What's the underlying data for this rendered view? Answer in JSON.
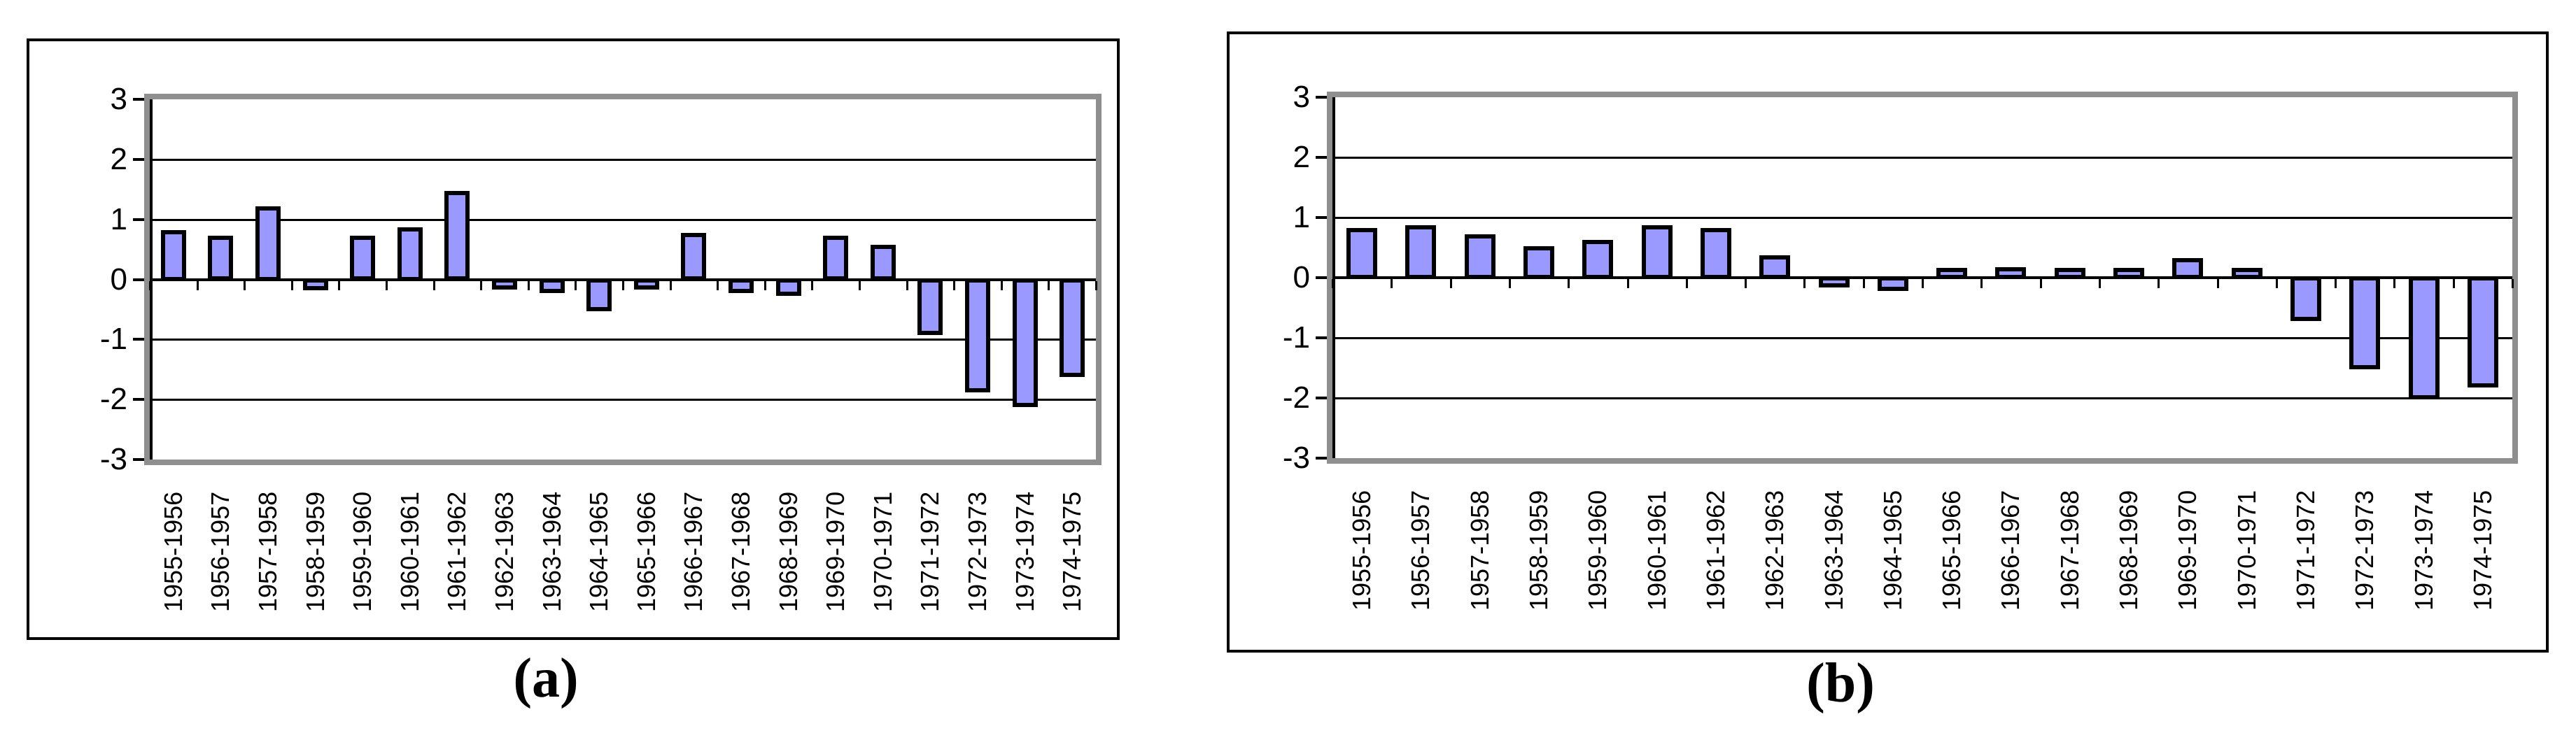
{
  "figure": {
    "captions": {
      "a": "(a)",
      "b": "(b)"
    }
  },
  "colors": {
    "background": "#ffffff",
    "bar_fill": "#9999ff",
    "bar_border": "#000000",
    "plot_frame": "#8f8f8f",
    "gridline": "#000000",
    "panel_border": "#000000",
    "text": "#000000"
  },
  "chart_data": [
    {
      "id": "a",
      "type": "bar",
      "title": "",
      "xlabel": "",
      "ylabel": "",
      "caption": "(a)",
      "ylim": [
        -3,
        3
      ],
      "yticks": [
        3,
        2,
        1,
        0,
        -1,
        -2,
        -3
      ],
      "grid": true,
      "legend": false,
      "x_tick_label_rotation": 90,
      "categories": [
        "1955-1956",
        "1956-1957",
        "1957-1958",
        "1958-1959",
        "1959-1960",
        "1960-1961",
        "1961-1962",
        "1962-1963",
        "1963-1964",
        "1964-1965",
        "1965-1966",
        "1966-1967",
        "1967-1968",
        "1968-1969",
        "1969-1970",
        "1970-1971",
        "1971-1972",
        "1972-1973",
        "1973-1974",
        "1974-1975"
      ],
      "values": [
        0.8,
        0.7,
        1.2,
        -0.15,
        0.7,
        0.85,
        1.45,
        -0.05,
        -0.2,
        -0.5,
        -0.05,
        0.75,
        -0.2,
        -0.25,
        0.7,
        0.55,
        -0.9,
        -1.85,
        -2.1,
        -1.6
      ]
    },
    {
      "id": "b",
      "type": "bar",
      "title": "",
      "xlabel": "",
      "ylabel": "",
      "caption": "(b)",
      "ylim": [
        -3,
        3
      ],
      "yticks": [
        3,
        2,
        1,
        0,
        -1,
        -2,
        -3
      ],
      "grid": true,
      "legend": false,
      "x_tick_label_rotation": 90,
      "categories": [
        "1955-1956",
        "1956-1957",
        "1957-1958",
        "1958-1959",
        "1959-1960",
        "1960-1961",
        "1961-1962",
        "1962-1963",
        "1963-1964",
        "1964-1965",
        "1965-1966",
        "1966-1967",
        "1967-1968",
        "1968-1969",
        "1969-1970",
        "1970-1971",
        "1971-1972",
        "1972-1973",
        "1973-1974",
        "1974-1975"
      ],
      "values": [
        0.8,
        0.85,
        0.7,
        0.5,
        0.6,
        0.85,
        0.8,
        0.35,
        -0.1,
        -0.2,
        0.05,
        0.15,
        0.1,
        0.1,
        0.3,
        0.05,
        -0.7,
        -1.5,
        -2.0,
        -1.8
      ]
    }
  ]
}
